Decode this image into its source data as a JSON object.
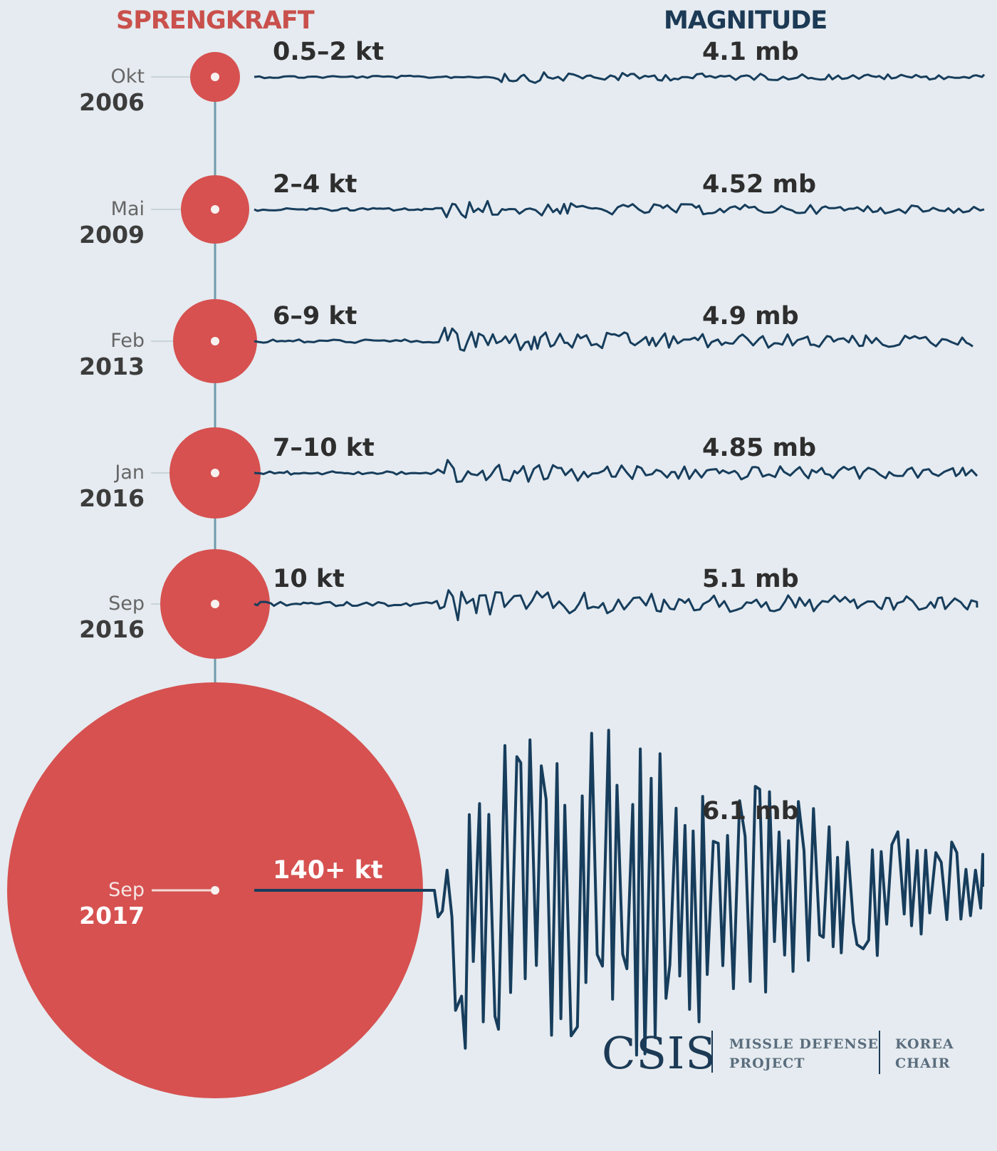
{
  "headers": {
    "left": "SPRENGKRAFT",
    "right": "MAGNITUDE"
  },
  "chart_data": {
    "type": "bubble-timeline",
    "events": [
      {
        "month": "Okt",
        "year": "2006",
        "yield_label": "0.5–2 kt",
        "yield_kt_max": 2,
        "magnitude_label": "4.1 mb",
        "magnitude_mb": 4.1
      },
      {
        "month": "Mai",
        "year": "2009",
        "yield_label": "2–4 kt",
        "yield_kt_max": 4,
        "magnitude_label": "4.52 mb",
        "magnitude_mb": 4.52
      },
      {
        "month": "Feb",
        "year": "2013",
        "yield_label": "6–9 kt",
        "yield_kt_max": 9,
        "magnitude_label": "4.9 mb",
        "magnitude_mb": 4.9
      },
      {
        "month": "Jan",
        "year": "2016",
        "yield_label": "7–10 kt",
        "yield_kt_max": 10,
        "magnitude_label": "4.85 mb",
        "magnitude_mb": 4.85
      },
      {
        "month": "Sep",
        "year": "2016",
        "yield_label": "10 kt",
        "yield_kt_max": 10,
        "magnitude_label": "5.1 mb",
        "magnitude_mb": 5.1
      },
      {
        "month": "Sep",
        "year": "2017",
        "yield_label": "140+ kt",
        "yield_kt_max": 140,
        "magnitude_label": "6.1 mb",
        "magnitude_mb": 6.1
      }
    ]
  },
  "logo": {
    "main": "CSIS",
    "line1a": "MISSLE DEFENSE",
    "line1b": "PROJECT",
    "line2a": "KOREA",
    "line2b": "CHAIR"
  },
  "colors": {
    "bubble": "#d65150",
    "wave": "#173d5c",
    "spine": "#6f9bab",
    "background": "#e5ebf0"
  }
}
